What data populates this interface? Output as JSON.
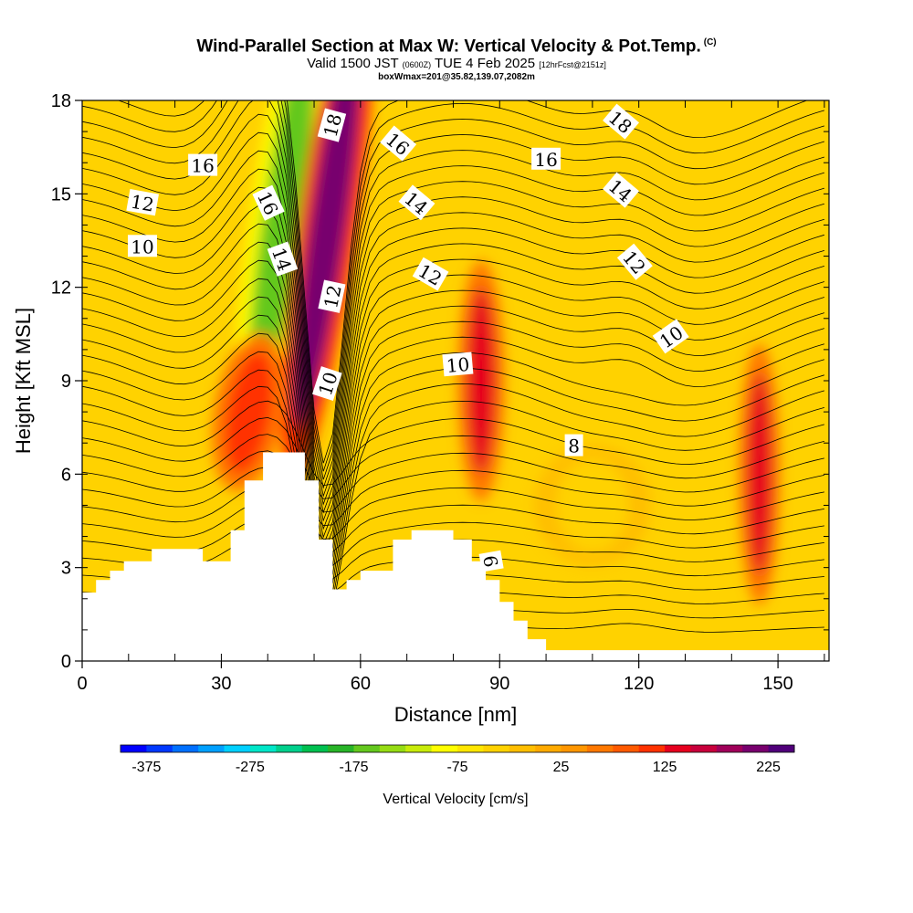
{
  "title": {
    "main": "Wind-Parallel Section at Max W: Vertical Velocity & Pot.Temp.",
    "copyright": "(C)",
    "valid_prefix": "Valid 1500 JST",
    "valid_utc": "(0600Z)",
    "valid_date": "TUE 4 Feb 2025",
    "forecast": "[12hrFcst@2151z]",
    "box_info": "boxWmax=201@35.82,139.07,2082m"
  },
  "chart_data": {
    "type": "heatmap",
    "xlabel": "Distance [nm]",
    "ylabel": "Height [Kft MSL]",
    "xlim": [
      0,
      161
    ],
    "ylim": [
      0,
      18
    ],
    "x_ticks": [
      "0",
      "30",
      "60",
      "90",
      "120",
      "150"
    ],
    "y_ticks": [
      "0",
      "3",
      "6",
      "9",
      "12",
      "15",
      "18"
    ],
    "colorbar": {
      "label": "Vertical Velocity [cm/s]",
      "tick_labels": [
        "-375",
        "-275",
        "-175",
        "-75",
        "25",
        "125",
        "225"
      ],
      "colors": [
        "#0000ff",
        "#0038ff",
        "#0070ff",
        "#00a0ff",
        "#00d0ff",
        "#00e6c8",
        "#00d08c",
        "#00c050",
        "#28b428",
        "#64c81e",
        "#96dc14",
        "#c8eb0a",
        "#ffff00",
        "#ffe600",
        "#ffd200",
        "#ffbe00",
        "#ffaa00",
        "#ff9600",
        "#ff7800",
        "#ff5a00",
        "#ff3200",
        "#e6001e",
        "#c8003c",
        "#a0005a",
        "#78006e",
        "#50007a"
      ]
    },
    "terrain": [
      [
        0,
        2.2
      ],
      [
        3,
        2.2
      ],
      [
        3,
        2.6
      ],
      [
        6,
        2.6
      ],
      [
        6,
        2.9
      ],
      [
        9,
        2.9
      ],
      [
        9,
        3.2
      ],
      [
        15,
        3.2
      ],
      [
        15,
        3.6
      ],
      [
        26,
        3.6
      ],
      [
        26,
        3.2
      ],
      [
        32,
        3.2
      ],
      [
        32,
        4.2
      ],
      [
        35,
        4.2
      ],
      [
        35,
        5.8
      ],
      [
        39,
        5.8
      ],
      [
        39,
        6.7
      ],
      [
        48,
        6.7
      ],
      [
        48,
        5.8
      ],
      [
        51,
        5.8
      ],
      [
        51,
        3.9
      ],
      [
        54,
        3.9
      ],
      [
        54,
        2.3
      ],
      [
        57,
        2.3
      ],
      [
        57,
        2.6
      ],
      [
        60,
        2.6
      ],
      [
        60,
        2.9
      ],
      [
        67,
        2.9
      ],
      [
        67,
        3.9
      ],
      [
        71,
        3.9
      ],
      [
        71,
        4.2
      ],
      [
        80,
        4.2
      ],
      [
        80,
        3.9
      ],
      [
        84,
        3.9
      ],
      [
        84,
        3.2
      ],
      [
        87,
        3.2
      ],
      [
        87,
        2.6
      ],
      [
        90,
        2.6
      ],
      [
        90,
        1.9
      ],
      [
        93,
        1.9
      ],
      [
        93,
        1.3
      ],
      [
        96,
        1.3
      ],
      [
        96,
        0.7
      ],
      [
        100,
        0.7
      ],
      [
        100,
        0.35
      ],
      [
        161,
        0.35
      ]
    ],
    "velocity_features": [
      {
        "x": 43,
        "y": 14,
        "w": -160,
        "desc": "downdraft band"
      },
      {
        "x": 53,
        "y": 14,
        "w": 210,
        "desc": "updraft band"
      },
      {
        "x": 86,
        "y": 9,
        "w": 125
      },
      {
        "x": 146,
        "y": 6,
        "w": 125
      },
      {
        "x": 36,
        "y": 8,
        "w": 100
      },
      {
        "x": 110,
        "y": 5,
        "w": -30
      }
    ],
    "theta_contour_labels": [
      {
        "label": "18",
        "x": 54,
        "y": 17.2,
        "rot": -75
      },
      {
        "label": "16",
        "x": 26,
        "y": 15.9,
        "rot": 0
      },
      {
        "label": "16",
        "x": 40,
        "y": 14.7,
        "rot": 65
      },
      {
        "label": "16",
        "x": 68,
        "y": 16.6,
        "rot": 40
      },
      {
        "label": "16",
        "x": 100,
        "y": 16.1,
        "rot": 0
      },
      {
        "label": "18",
        "x": 116,
        "y": 17.3,
        "rot": 40
      },
      {
        "label": "14",
        "x": 43,
        "y": 12.9,
        "rot": 70
      },
      {
        "label": "14",
        "x": 72,
        "y": 14.7,
        "rot": 40
      },
      {
        "label": "14",
        "x": 116,
        "y": 15.1,
        "rot": 40
      },
      {
        "label": "12",
        "x": 13,
        "y": 14.7,
        "rot": 10
      },
      {
        "label": "12",
        "x": 54,
        "y": 11.7,
        "rot": -78
      },
      {
        "label": "12",
        "x": 75,
        "y": 12.4,
        "rot": 30
      },
      {
        "label": "12",
        "x": 119,
        "y": 12.8,
        "rot": 50
      },
      {
        "label": "10",
        "x": 13,
        "y": 13.3,
        "rot": 0
      },
      {
        "label": "10",
        "x": 53,
        "y": 8.9,
        "rot": -72
      },
      {
        "label": "10",
        "x": 81,
        "y": 9.5,
        "rot": -5
      },
      {
        "label": "10",
        "x": 127,
        "y": 10.4,
        "rot": -35
      },
      {
        "label": "8",
        "x": 106,
        "y": 6.9,
        "rot": 0
      },
      {
        "label": "6",
        "x": 88,
        "y": 3.2,
        "rot": 80
      }
    ]
  }
}
